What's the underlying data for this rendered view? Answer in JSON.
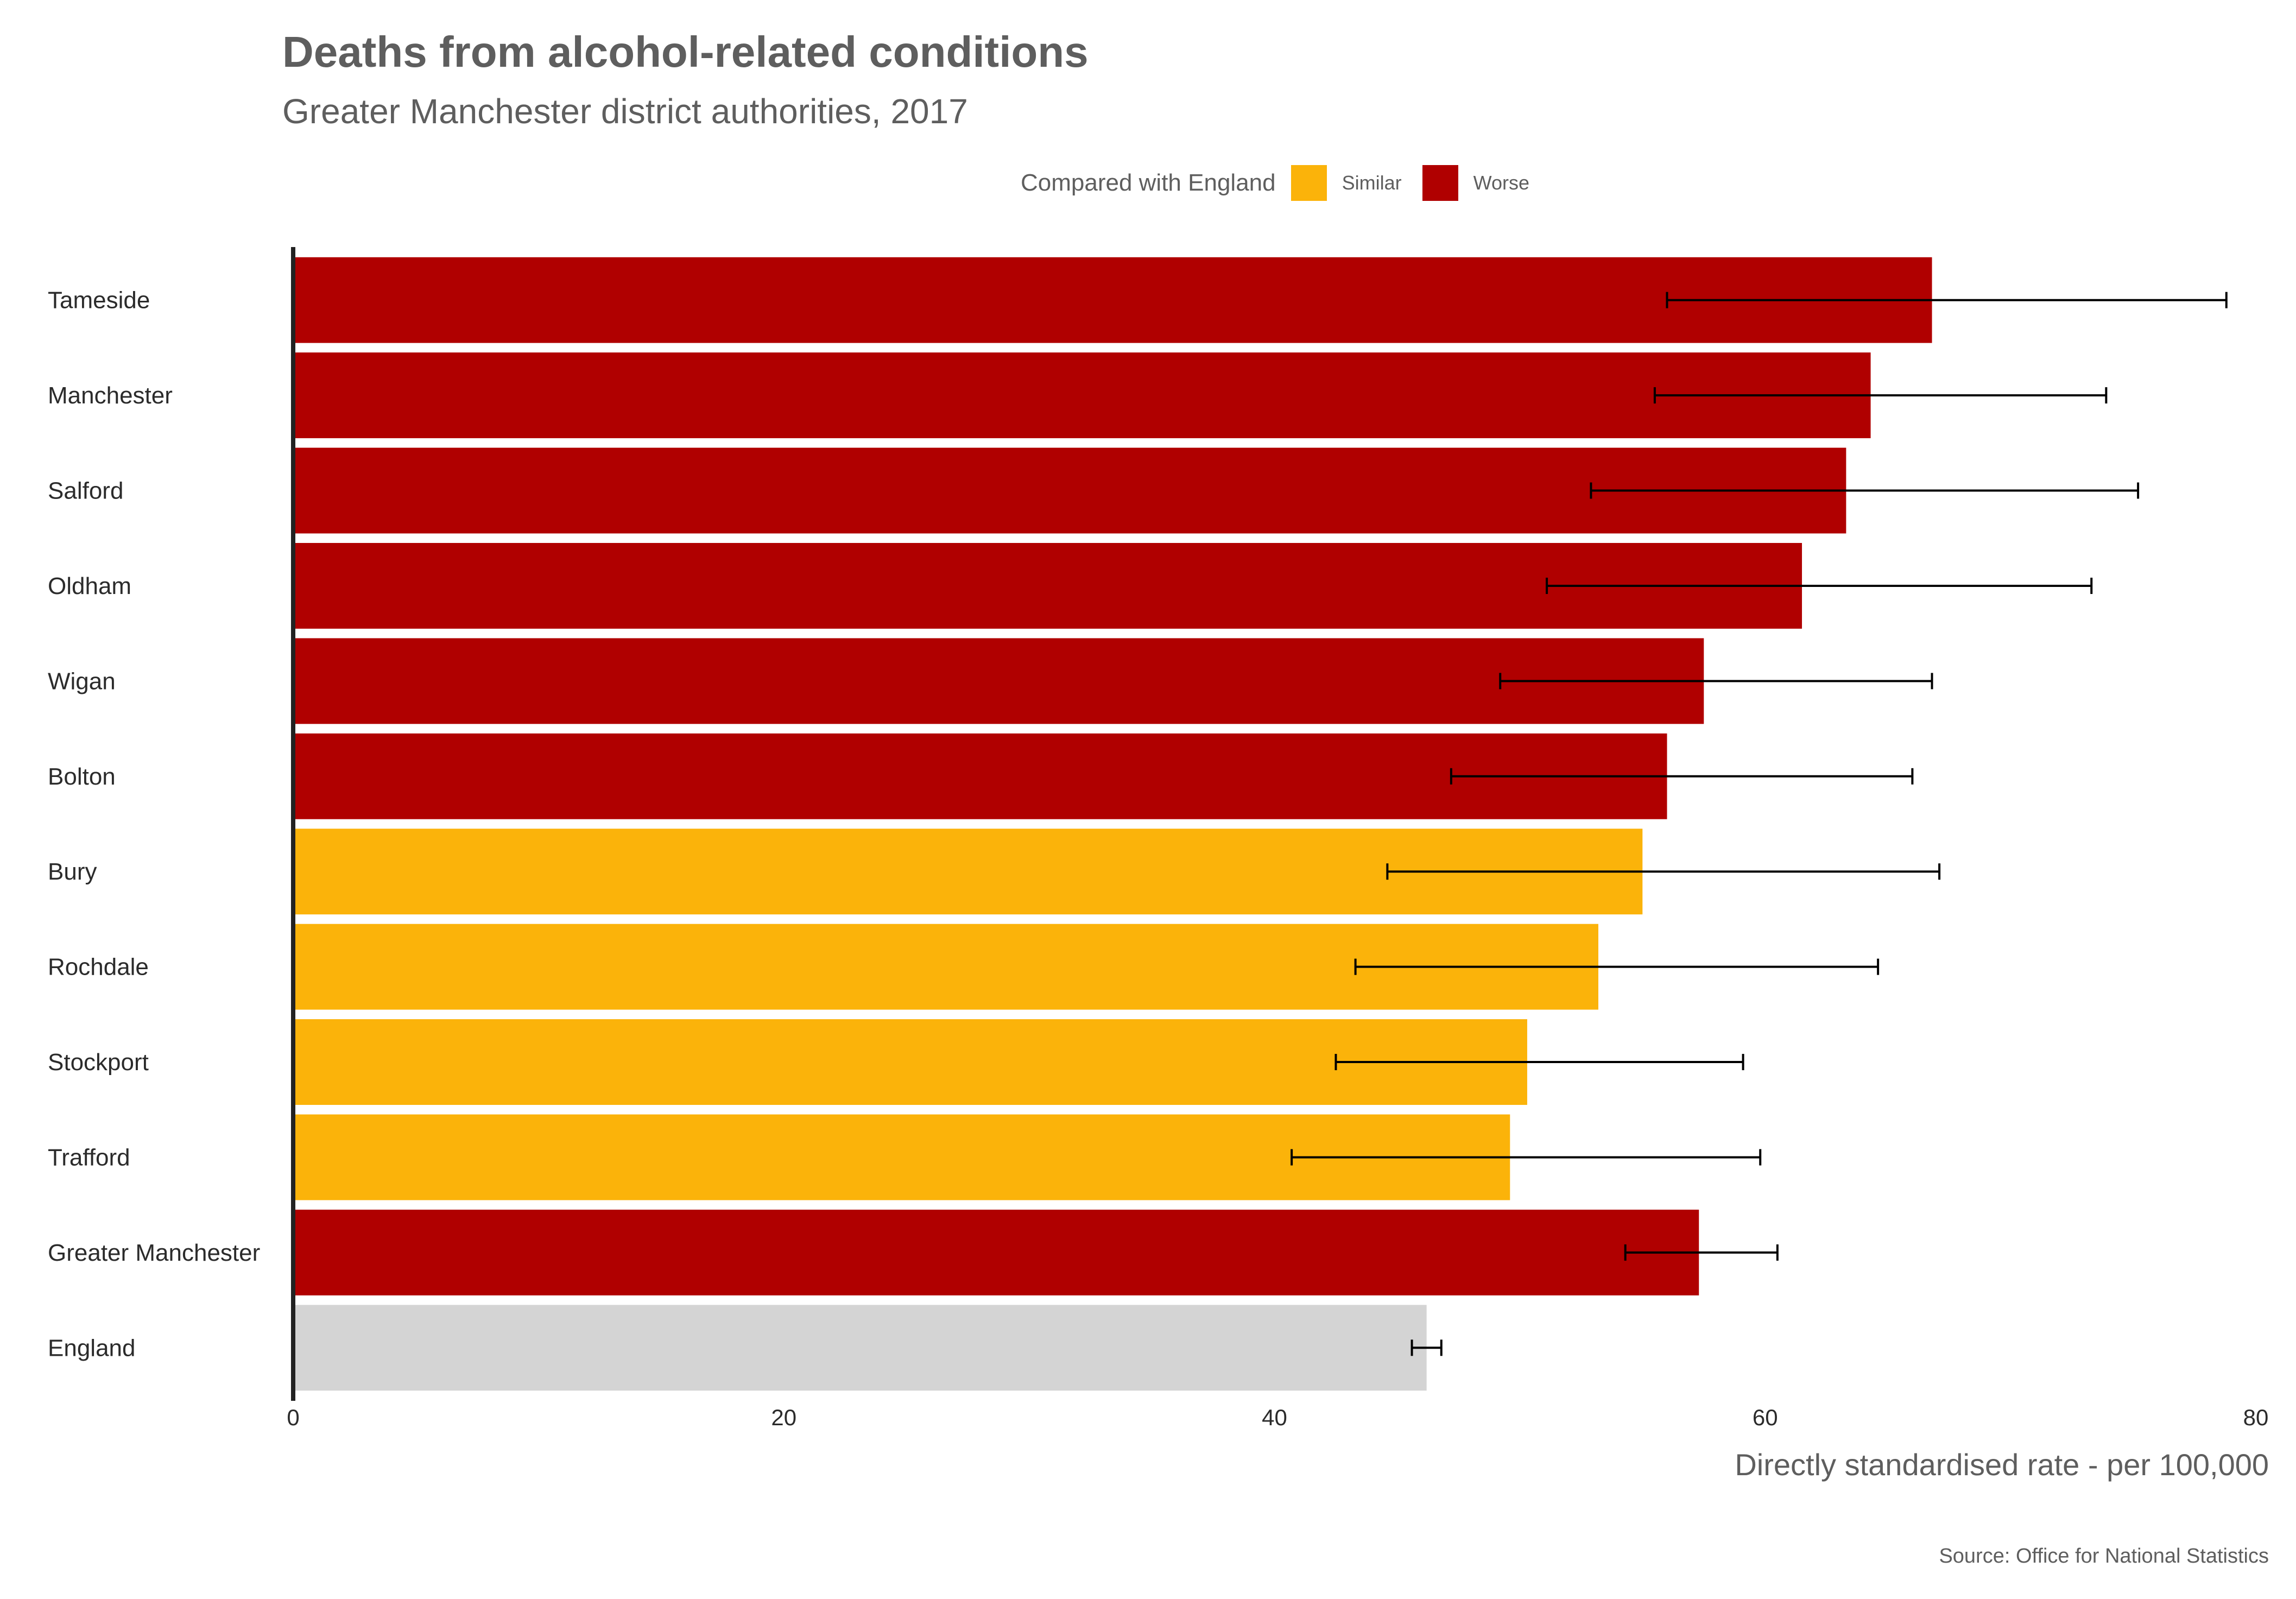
{
  "chart_data": {
    "type": "bar",
    "orientation": "horizontal",
    "title": "Deaths from alcohol-related conditions",
    "subtitle": "Greater Manchester district authorities, 2017",
    "xlabel": "Directly standardised rate - per 100,000",
    "ylabel": "",
    "xlim": [
      0,
      80
    ],
    "xticks": [
      0,
      20,
      40,
      60,
      80
    ],
    "grid": false,
    "legend": {
      "title": "Compared with England",
      "position": "top",
      "items": [
        {
          "label": "Similar",
          "color": "#fbb30a"
        },
        {
          "label": "Worse",
          "color": "#b00000"
        }
      ]
    },
    "colors": {
      "Similar": "#fbb30a",
      "Worse": "#b00000",
      "Benchmark": "#d4d4d4"
    },
    "categories": [
      "Tameside",
      "Manchester",
      "Salford",
      "Oldham",
      "Wigan",
      "Bolton",
      "Bury",
      "Rochdale",
      "Stockport",
      "Trafford",
      "Greater Manchester",
      "England"
    ],
    "values": [
      66.8,
      64.3,
      63.3,
      61.5,
      57.5,
      56.0,
      55.0,
      53.2,
      50.3,
      49.6,
      57.3,
      46.2
    ],
    "lower_ci": [
      56.0,
      55.5,
      52.9,
      51.1,
      49.2,
      47.2,
      44.6,
      43.3,
      42.5,
      40.7,
      54.3,
      45.6
    ],
    "upper_ci": [
      78.8,
      73.9,
      75.2,
      73.3,
      66.8,
      66.0,
      67.1,
      64.6,
      59.1,
      59.8,
      60.5,
      46.8
    ],
    "comparison": [
      "Worse",
      "Worse",
      "Worse",
      "Worse",
      "Worse",
      "Worse",
      "Similar",
      "Similar",
      "Similar",
      "Similar",
      "Worse",
      "Benchmark"
    ],
    "caption": "Source: Office for National Statistics"
  }
}
